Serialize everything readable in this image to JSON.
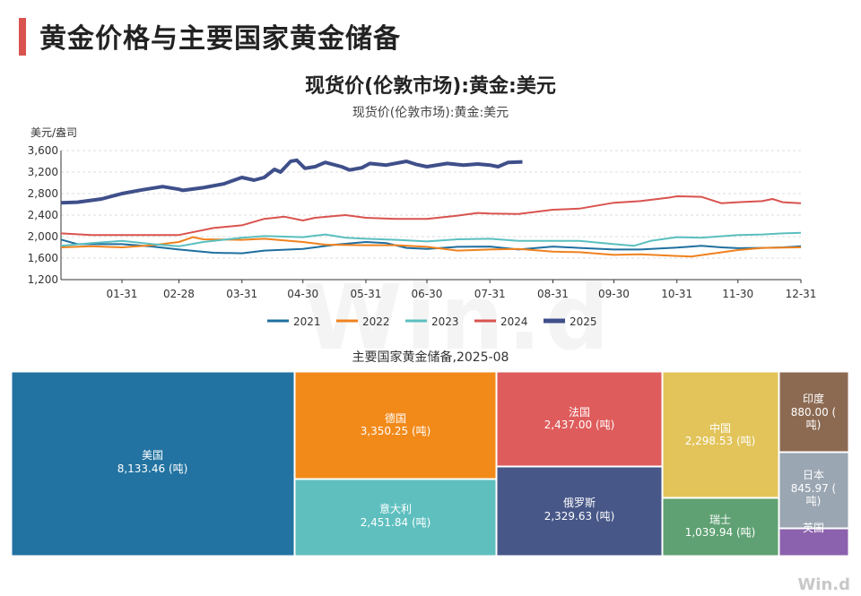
{
  "page": {
    "title": "黄金价格与主要国家黄金储备",
    "brand": "Win.d",
    "watermark": "Win.d"
  },
  "colors": {
    "accent": "#d9534f",
    "series": [
      "#1f6f9f",
      "#f0821e",
      "#5bbfbf",
      "#d9534f",
      "#3f4f8a"
    ]
  },
  "chart_data": [
    {
      "type": "line",
      "title": "现货价(伦敦市场):黄金:美元",
      "subtitle": "现货价(伦敦市场):黄金:美元",
      "ylabel": "美元/盎司",
      "ylim": [
        1200,
        3600
      ],
      "yticks": [
        "1,200",
        "1,600",
        "2,000",
        "2,400",
        "2,800",
        "3,200",
        "3,600"
      ],
      "ytick_values": [
        1200,
        1600,
        2000,
        2400,
        2800,
        3200,
        3600
      ],
      "xlim": [
        "01-01",
        "12-31"
      ],
      "xticks": [
        "01-31",
        "02-28",
        "03-31",
        "04-30",
        "05-31",
        "06-30",
        "07-31",
        "08-31",
        "09-30",
        "10-31",
        "11-30",
        "12-31"
      ],
      "xtick_days": [
        30,
        58,
        89,
        119,
        150,
        180,
        211,
        242,
        272,
        303,
        333,
        364
      ],
      "grid": true,
      "legend_position": "bottom",
      "series": [
        {
          "name": "2021",
          "width": 2,
          "points": [
            [
              0,
              1945
            ],
            [
              8,
              1860
            ],
            [
              30,
              1860
            ],
            [
              45,
              1815
            ],
            [
              58,
              1760
            ],
            [
              75,
              1700
            ],
            [
              89,
              1690
            ],
            [
              100,
              1740
            ],
            [
              119,
              1770
            ],
            [
              135,
              1850
            ],
            [
              150,
              1900
            ],
            [
              160,
              1880
            ],
            [
              170,
              1790
            ],
            [
              180,
              1770
            ],
            [
              195,
              1810
            ],
            [
              211,
              1815
            ],
            [
              225,
              1760
            ],
            [
              242,
              1815
            ],
            [
              255,
              1790
            ],
            [
              272,
              1760
            ],
            [
              285,
              1760
            ],
            [
              303,
              1795
            ],
            [
              315,
              1830
            ],
            [
              325,
              1800
            ],
            [
              333,
              1785
            ],
            [
              345,
              1790
            ],
            [
              355,
              1800
            ],
            [
              364,
              1820
            ]
          ]
        },
        {
          "name": "2022",
          "width": 2,
          "points": [
            [
              0,
              1800
            ],
            [
              15,
              1820
            ],
            [
              30,
              1800
            ],
            [
              45,
              1840
            ],
            [
              58,
              1900
            ],
            [
              65,
              1990
            ],
            [
              70,
              1950
            ],
            [
              89,
              1940
            ],
            [
              100,
              1960
            ],
            [
              119,
              1900
            ],
            [
              130,
              1850
            ],
            [
              150,
              1840
            ],
            [
              165,
              1840
            ],
            [
              180,
              1810
            ],
            [
              195,
              1740
            ],
            [
              211,
              1760
            ],
            [
              225,
              1770
            ],
            [
              242,
              1720
            ],
            [
              255,
              1710
            ],
            [
              272,
              1660
            ],
            [
              285,
              1670
            ],
            [
              303,
              1640
            ],
            [
              310,
              1630
            ],
            [
              333,
              1750
            ],
            [
              345,
              1790
            ],
            [
              364,
              1800
            ]
          ]
        },
        {
          "name": "2023",
          "width": 2,
          "points": [
            [
              0,
              1830
            ],
            [
              15,
              1880
            ],
            [
              30,
              1920
            ],
            [
              45,
              1860
            ],
            [
              58,
              1820
            ],
            [
              70,
              1900
            ],
            [
              89,
              1980
            ],
            [
              100,
              2010
            ],
            [
              110,
              2000
            ],
            [
              119,
              1990
            ],
            [
              130,
              2040
            ],
            [
              140,
              1980
            ],
            [
              150,
              1960
            ],
            [
              165,
              1940
            ],
            [
              180,
              1910
            ],
            [
              195,
              1950
            ],
            [
              211,
              1960
            ],
            [
              225,
              1920
            ],
            [
              242,
              1920
            ],
            [
              255,
              1920
            ],
            [
              272,
              1860
            ],
            [
              282,
              1830
            ],
            [
              290,
              1920
            ],
            [
              303,
              1990
            ],
            [
              315,
              1980
            ],
            [
              333,
              2030
            ],
            [
              345,
              2040
            ],
            [
              355,
              2060
            ],
            [
              364,
              2070
            ]
          ]
        },
        {
          "name": "2024",
          "width": 2,
          "points": [
            [
              0,
              2060
            ],
            [
              15,
              2030
            ],
            [
              30,
              2030
            ],
            [
              45,
              2030
            ],
            [
              58,
              2030
            ],
            [
              75,
              2160
            ],
            [
              89,
              2210
            ],
            [
              100,
              2330
            ],
            [
              110,
              2370
            ],
            [
              119,
              2300
            ],
            [
              125,
              2350
            ],
            [
              140,
              2400
            ],
            [
              150,
              2350
            ],
            [
              165,
              2330
            ],
            [
              180,
              2330
            ],
            [
              195,
              2390
            ],
            [
              205,
              2440
            ],
            [
              211,
              2430
            ],
            [
              225,
              2420
            ],
            [
              242,
              2500
            ],
            [
              255,
              2520
            ],
            [
              272,
              2630
            ],
            [
              285,
              2660
            ],
            [
              300,
              2730
            ],
            [
              303,
              2750
            ],
            [
              315,
              2740
            ],
            [
              325,
              2620
            ],
            [
              333,
              2640
            ],
            [
              345,
              2660
            ],
            [
              350,
              2700
            ],
            [
              355,
              2640
            ],
            [
              364,
              2620
            ]
          ]
        },
        {
          "name": "2025",
          "width": 4,
          "points": [
            [
              0,
              2630
            ],
            [
              8,
              2640
            ],
            [
              20,
              2700
            ],
            [
              30,
              2800
            ],
            [
              40,
              2870
            ],
            [
              50,
              2930
            ],
            [
              58,
              2880
            ],
            [
              60,
              2860
            ],
            [
              70,
              2910
            ],
            [
              80,
              2980
            ],
            [
              89,
              3100
            ],
            [
              95,
              3050
            ],
            [
              100,
              3100
            ],
            [
              105,
              3250
            ],
            [
              108,
              3200
            ],
            [
              113,
              3400
            ],
            [
              116,
              3420
            ],
            [
              120,
              3270
            ],
            [
              125,
              3300
            ],
            [
              130,
              3380
            ],
            [
              138,
              3300
            ],
            [
              142,
              3240
            ],
            [
              148,
              3280
            ],
            [
              152,
              3360
            ],
            [
              160,
              3330
            ],
            [
              170,
              3400
            ],
            [
              175,
              3340
            ],
            [
              180,
              3300
            ],
            [
              190,
              3360
            ],
            [
              198,
              3330
            ],
            [
              205,
              3350
            ],
            [
              211,
              3330
            ],
            [
              215,
              3300
            ],
            [
              220,
              3380
            ],
            [
              227,
              3390
            ]
          ]
        }
      ]
    },
    {
      "type": "treemap",
      "title": "主要国家黄金储备,2025-08",
      "unit": "(吨)",
      "items": [
        {
          "name": "美国",
          "value_label": "8,133.46",
          "value": 8133.46,
          "color": "#2273a1"
        },
        {
          "name": "德国",
          "value_label": "3,350.25",
          "value": 3350.25,
          "color": "#f28a1a"
        },
        {
          "name": "意大利",
          "value_label": "2,451.84",
          "value": 2451.84,
          "color": "#5fbfbf"
        },
        {
          "name": "法国",
          "value_label": "2,437.00",
          "value": 2437.0,
          "color": "#df5c5c"
        },
        {
          "name": "俄罗斯",
          "value_label": "2,329.63",
          "value": 2329.63,
          "color": "#475788"
        },
        {
          "name": "中国",
          "value_label": "2,298.53",
          "value": 2298.53,
          "color": "#e2c45a"
        },
        {
          "name": "瑞士",
          "value_label": "1,039.94",
          "value": 1039.94,
          "color": "#5fa173"
        },
        {
          "name": "印度",
          "value_label": "880.00",
          "value": 880.0,
          "color": "#8c6a52"
        },
        {
          "name": "日本",
          "value_label": "845.97",
          "value": 845.97,
          "color": "#9aa6b2"
        },
        {
          "name": "英国",
          "value_label": "",
          "value": 310.29,
          "color": "#8b62ad"
        }
      ]
    }
  ]
}
